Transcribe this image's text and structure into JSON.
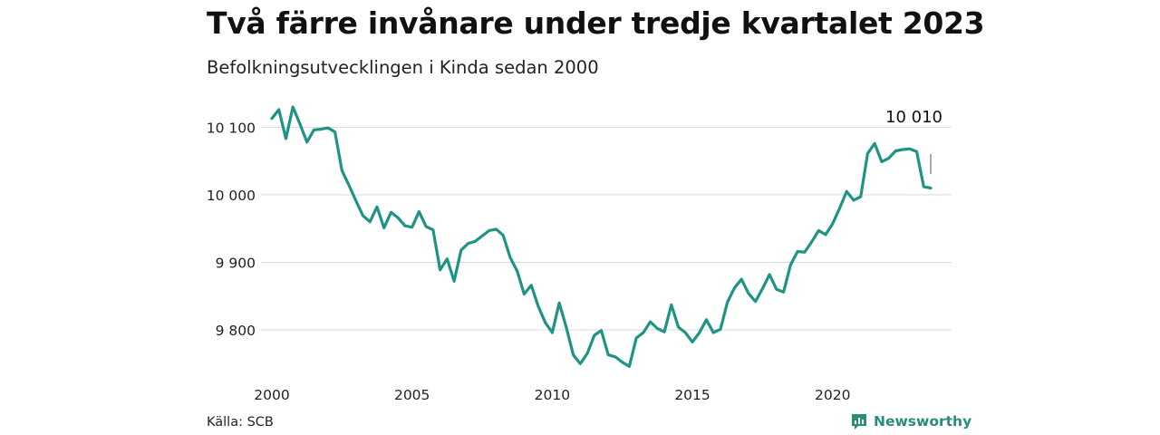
{
  "header": {
    "title": "Två färre invånare under tredje kvartalet 2023",
    "subtitle": "Befolkningsutvecklingen i Kinda sedan 2000"
  },
  "footer": {
    "source": "Källa: SCB",
    "brand": "Newsworthy",
    "brand_icon": "newsworthy-logo-icon"
  },
  "colors": {
    "line": "#1f9484",
    "grid": "#d9d9d9",
    "brand": "#2a8c7a"
  },
  "chart_data": {
    "type": "line",
    "title": "Två färre invånare under tredje kvartalet 2023",
    "subtitle": "Befolkningsutvecklingen i Kinda sedan 2000",
    "xlabel": "",
    "ylabel": "",
    "x_ticks": [
      2000,
      2005,
      2010,
      2015,
      2020
    ],
    "x_tick_labels": [
      "2000",
      "2005",
      "2010",
      "2015",
      "2020"
    ],
    "y_ticks": [
      9800,
      9900,
      10000,
      10100
    ],
    "y_tick_labels": [
      "9 800",
      "9 900",
      "10 000",
      "10 100"
    ],
    "xlim": [
      2000,
      2023.5
    ],
    "ylim": [
      9745,
      10130
    ],
    "grid": "horizontal",
    "end_label": "10 010",
    "series": [
      {
        "x": [
          2000.0,
          2000.25,
          2000.5,
          2000.75,
          2001.0,
          2001.25,
          2001.5,
          2001.75,
          2002.0,
          2002.25,
          2002.5,
          2002.75,
          2003.0,
          2003.25,
          2003.5,
          2003.75,
          2004.0,
          2004.25,
          2004.5,
          2004.75,
          2005.0,
          2005.25,
          2005.5,
          2005.75,
          2006.0,
          2006.25,
          2006.5,
          2006.75,
          2007.0,
          2007.25,
          2007.5,
          2007.75,
          2008.0,
          2008.25,
          2008.5,
          2008.75,
          2009.0,
          2009.25,
          2009.5,
          2009.75,
          2010.0,
          2010.25,
          2010.5,
          2010.75,
          2011.0,
          2011.25,
          2011.5,
          2011.75,
          2012.0,
          2012.25,
          2012.5,
          2012.75,
          2013.0,
          2013.25,
          2013.5,
          2013.75,
          2014.0,
          2014.25,
          2014.5,
          2014.75,
          2015.0,
          2015.25,
          2015.5,
          2015.75,
          2016.0,
          2016.25,
          2016.5,
          2016.75,
          2017.0,
          2017.25,
          2017.5,
          2017.75,
          2018.0,
          2018.25,
          2018.5,
          2018.75,
          2019.0,
          2019.25,
          2019.5,
          2019.75,
          2020.0,
          2020.25,
          2020.5,
          2020.75,
          2021.0,
          2021.25,
          2021.5,
          2021.75,
          2022.0,
          2022.25,
          2022.5,
          2022.75,
          2023.0,
          2023.25,
          2023.5
        ],
        "y": [
          10113,
          10126,
          10083,
          10130,
          10105,
          10078,
          10096,
          10097,
          10099,
          10093,
          10036,
          10014,
          9991,
          9969,
          9960,
          9982,
          9951,
          9974,
          9966,
          9954,
          9952,
          9975,
          9953,
          9948,
          9889,
          9905,
          9872,
          9918,
          9928,
          9931,
          9939,
          9947,
          9949,
          9940,
          9907,
          9887,
          9853,
          9866,
          9835,
          9811,
          9796,
          9840,
          9804,
          9763,
          9750,
          9765,
          9792,
          9799,
          9763,
          9760,
          9752,
          9746,
          9788,
          9796,
          9812,
          9802,
          9797,
          9837,
          9804,
          9796,
          9782,
          9796,
          9815,
          9796,
          9801,
          9841,
          9862,
          9875,
          9854,
          9842,
          9861,
          9882,
          9860,
          9856,
          9896,
          9916,
          9915,
          9930,
          9947,
          9941,
          9957,
          9980,
          10005,
          9992,
          9997,
          10061,
          10076,
          10049,
          10054,
          10065,
          10067,
          10068,
          10064,
          10012,
          10010
        ]
      }
    ]
  }
}
